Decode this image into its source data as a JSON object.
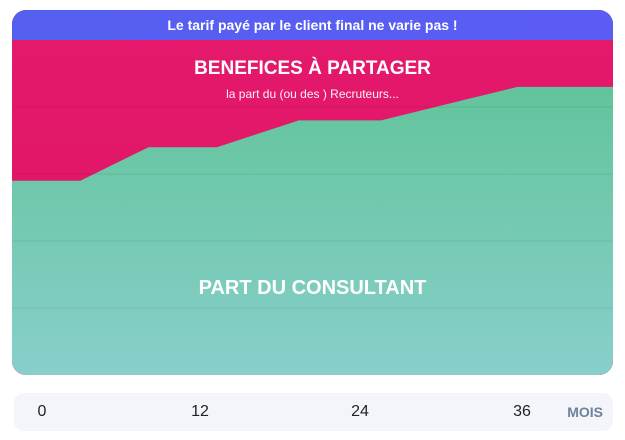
{
  "banner": {
    "text": "Le tarif payé par le client final ne varie pas !"
  },
  "labels": {
    "benefits_title": "BENEFICES À PARTAGER",
    "benefits_subtitle": "la part du (ou des ) Recruteurs...",
    "consultant": "PART DU CONSULTANT"
  },
  "axis": {
    "ticks": [
      "0",
      "12",
      "24",
      "36"
    ],
    "unit": "MOIS"
  },
  "colors": {
    "banner": "#5560f0",
    "benefits": "#e0156a",
    "consultant_top": "#62c49b",
    "consultant_bottom": "#84ccc7"
  },
  "chart_data": {
    "type": "area",
    "x": [
      0,
      5,
      10,
      15,
      21,
      27,
      33,
      37,
      44
    ],
    "consultant_share": [
      0.58,
      0.58,
      0.68,
      0.68,
      0.76,
      0.76,
      0.82,
      0.86,
      0.86
    ],
    "xlim": [
      0,
      44
    ],
    "ylim": [
      0,
      1
    ]
  }
}
